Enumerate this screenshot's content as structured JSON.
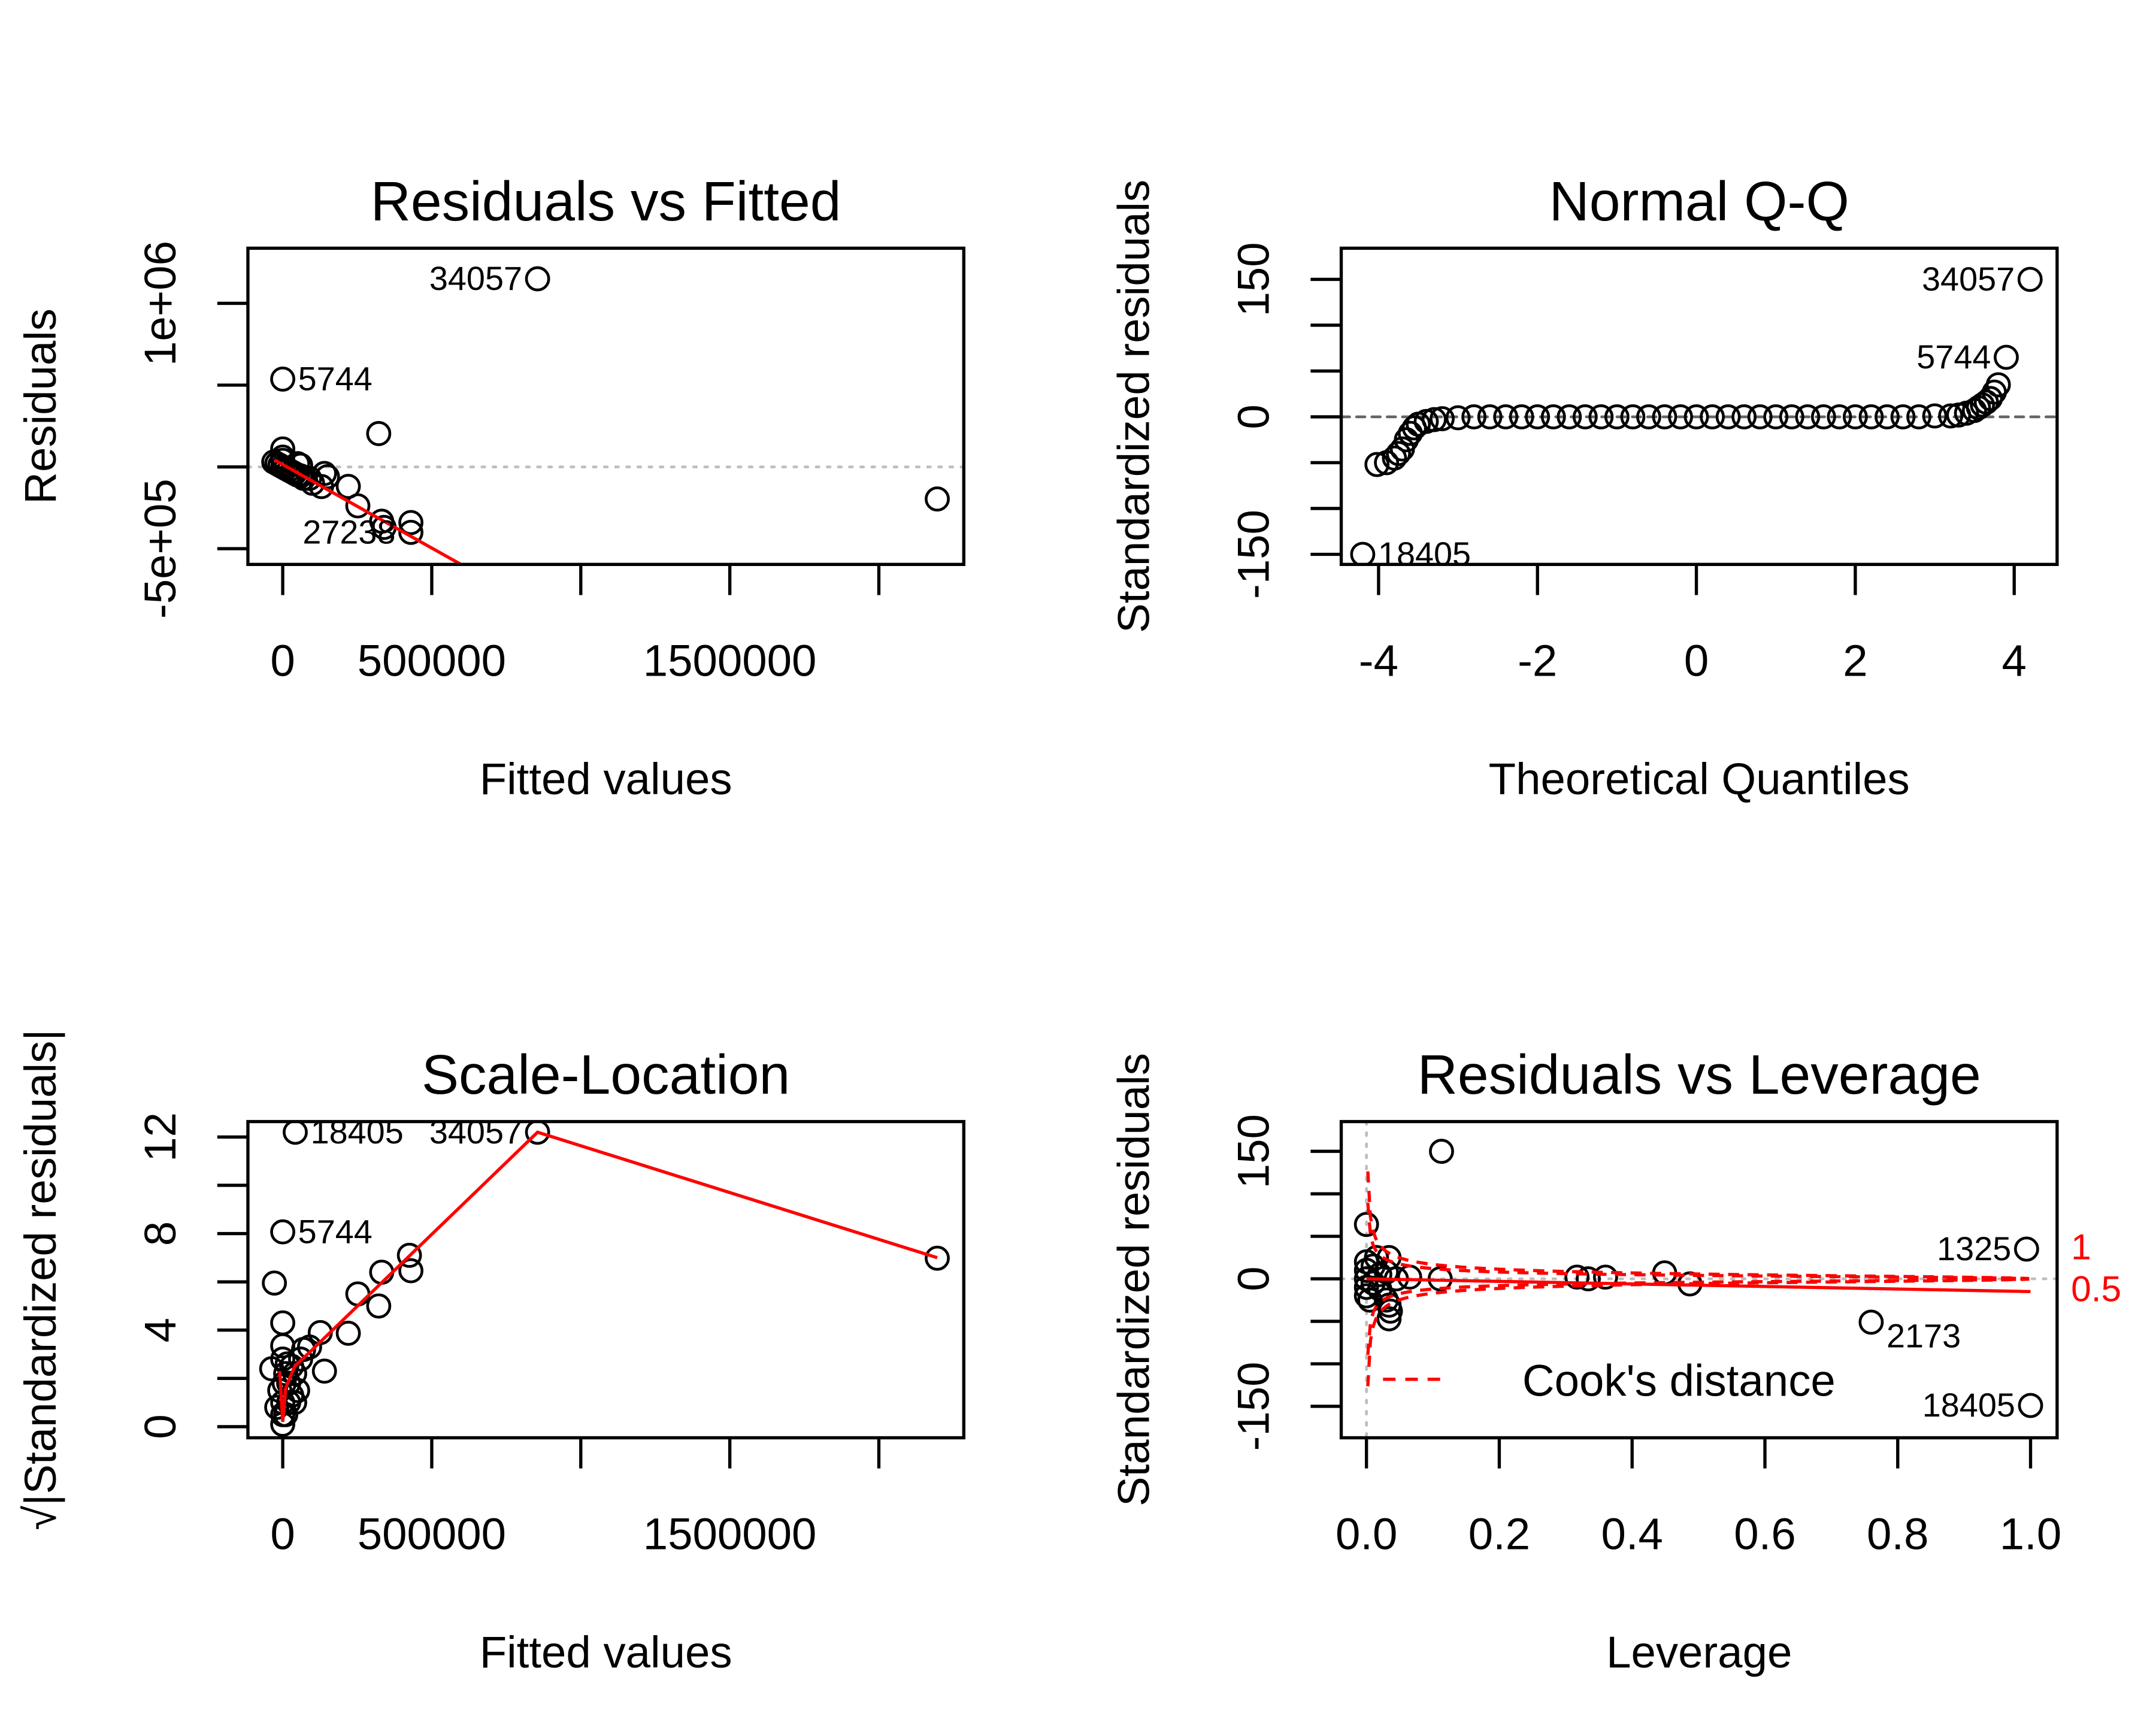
{
  "chart_data": [
    {
      "type": "scatter",
      "title": "Residuals vs Fitted",
      "xlabel": "Fitted values",
      "ylabel": "Residuals",
      "xlim": [
        -116800,
        2285000
      ],
      "ylim": [
        -596000,
        1337000
      ],
      "xticks": [
        0,
        500000,
        1000000,
        1500000,
        2000000
      ],
      "xtick_labels": [
        "0",
        "500000",
        "",
        "1500000",
        ""
      ],
      "yticks": [
        -500000,
        0,
        500000,
        1000000
      ],
      "ytick_labels": [
        "-5e+05",
        "",
        "",
        "1e+06"
      ],
      "points": [
        [
          -30000,
          30000
        ],
        [
          -20000,
          20000
        ],
        [
          -10000,
          10000
        ],
        [
          0,
          0
        ],
        [
          0,
          60000
        ],
        [
          0,
          110000
        ],
        [
          0,
          40000
        ],
        [
          10000,
          -10000
        ],
        [
          20000,
          -20000
        ],
        [
          30000,
          -30000
        ],
        [
          40000,
          -40000
        ],
        [
          50000,
          -50000
        ],
        [
          60000,
          -55000
        ],
        [
          70000,
          -70000
        ],
        [
          50000,
          20000
        ],
        [
          60000,
          10000
        ],
        [
          90000,
          -70000
        ],
        [
          100000,
          -100000
        ],
        [
          130000,
          -120000
        ],
        [
          140000,
          -40000
        ],
        [
          150000,
          -60000
        ],
        [
          220000,
          -119000
        ],
        [
          252000,
          -238000
        ],
        [
          322000,
          204000
        ],
        [
          332000,
          -332000
        ],
        [
          340000,
          -370000
        ],
        [
          430000,
          -340000
        ],
        [
          430000,
          -400000
        ],
        [
          2196000,
          -196000
        ],
        [
          855000,
          1150000
        ],
        [
          0,
          537000
        ]
      ],
      "labels": [
        {
          "text": "34057",
          "x": 855000,
          "y": 1150000
        },
        {
          "text": "5744",
          "x": 0,
          "y": 537000
        },
        {
          "text": "27238",
          "x": 430000,
          "y": -400000
        }
      ],
      "hlines": [
        {
          "y": 0,
          "style": "dotted",
          "color": "#bebebe"
        }
      ],
      "vlines": [],
      "lines": [
        {
          "style": "solid",
          "color": "#ff0000",
          "points": [
            [
              -28000,
              43000
            ],
            [
              700000,
              -700000
            ]
          ]
        }
      ]
    },
    {
      "type": "scatter",
      "title": "Normal Q-Q",
      "xlabel": "Theoretical Quantiles",
      "ylabel": "Standardized residuals",
      "xlim": [
        -4.47,
        4.54
      ],
      "ylim": [
        -161,
        184
      ],
      "xticks": [
        -4,
        -2,
        0,
        2,
        4
      ],
      "xtick_labels": [
        "-4",
        "-2",
        "0",
        "2",
        "4"
      ],
      "yticks": [
        -150,
        -100,
        -50,
        0,
        50,
        100,
        150
      ],
      "ytick_labels": [
        "-150",
        "",
        "",
        "0",
        "",
        "",
        "150"
      ],
      "points": [
        [
          -4.2,
          -150
        ],
        [
          -4.02,
          -52
        ],
        [
          -3.9,
          -50
        ],
        [
          -3.8,
          -45
        ],
        [
          -3.75,
          -40
        ],
        [
          -3.7,
          -35
        ],
        [
          -3.65,
          -25
        ],
        [
          -3.6,
          -18
        ],
        [
          -3.55,
          -12
        ],
        [
          -3.5,
          -8
        ],
        [
          -3.4,
          -5
        ],
        [
          -3.3,
          -3
        ],
        [
          -3.2,
          -2
        ],
        [
          -3.0,
          -1
        ],
        [
          -2.8,
          0
        ],
        [
          -2.6,
          0
        ],
        [
          -2.4,
          0
        ],
        [
          -2.2,
          0
        ],
        [
          -2.0,
          0
        ],
        [
          -1.8,
          0
        ],
        [
          -1.6,
          0
        ],
        [
          -1.4,
          0
        ],
        [
          -1.2,
          0
        ],
        [
          -1.0,
          0
        ],
        [
          -0.8,
          0
        ],
        [
          -0.6,
          0
        ],
        [
          -0.4,
          0
        ],
        [
          -0.2,
          0
        ],
        [
          0,
          0
        ],
        [
          0.2,
          0
        ],
        [
          0.4,
          0
        ],
        [
          0.6,
          0
        ],
        [
          0.8,
          0
        ],
        [
          1.0,
          0
        ],
        [
          1.2,
          0
        ],
        [
          1.4,
          0
        ],
        [
          1.6,
          0
        ],
        [
          1.8,
          0
        ],
        [
          2.0,
          0
        ],
        [
          2.2,
          0
        ],
        [
          2.4,
          0
        ],
        [
          2.6,
          0
        ],
        [
          2.8,
          0
        ],
        [
          3.0,
          1
        ],
        [
          3.2,
          1
        ],
        [
          3.3,
          2
        ],
        [
          3.4,
          4
        ],
        [
          3.5,
          7
        ],
        [
          3.55,
          10
        ],
        [
          3.6,
          13
        ],
        [
          3.65,
          16
        ],
        [
          3.7,
          20
        ],
        [
          3.75,
          27
        ],
        [
          3.8,
          35
        ],
        [
          3.9,
          65
        ],
        [
          4.2,
          150
        ]
      ],
      "labels": [
        {
          "text": "34057",
          "x": 4.2,
          "y": 150
        },
        {
          "text": "5744",
          "x": 3.9,
          "y": 65
        },
        {
          "text": "18405",
          "x": -4.2,
          "y": -150
        }
      ],
      "hlines": [
        {
          "y": 0,
          "style": "dashed",
          "color": "#666666"
        }
      ],
      "vlines": [],
      "lines": []
    },
    {
      "type": "scatter",
      "title": "Scale-Location",
      "xlabel": "Fitted values",
      "ylabel": "√|Standardized residuals|",
      "xlim": [
        -116800,
        2285000
      ],
      "ylim": [
        -0.46,
        12.64
      ],
      "xticks": [
        0,
        500000,
        1000000,
        1500000,
        2000000
      ],
      "xtick_labels": [
        "0",
        "500000",
        "",
        "1500000",
        ""
      ],
      "yticks": [
        0,
        2,
        4,
        6,
        8,
        10,
        12
      ],
      "ytick_labels": [
        "0",
        "",
        "4",
        "",
        "8",
        "",
        "12"
      ],
      "points": [
        [
          855000,
          12.2
        ],
        [
          42000,
          12.2
        ],
        [
          0,
          8.07
        ],
        [
          -28000,
          5.95
        ],
        [
          2196000,
          6.98
        ],
        [
          425000,
          7.1
        ],
        [
          430000,
          6.46
        ],
        [
          332000,
          6.4
        ],
        [
          322000,
          5.0
        ],
        [
          252000,
          5.5
        ],
        [
          220000,
          3.87
        ],
        [
          126000,
          3.9
        ],
        [
          140000,
          2.3
        ],
        [
          0,
          4.3
        ],
        [
          0,
          3.35
        ],
        [
          -37000,
          2.4
        ],
        [
          0,
          2.8
        ],
        [
          10000,
          2.2
        ],
        [
          20000,
          1.8
        ],
        [
          30000,
          2.5
        ],
        [
          40000,
          2.2
        ],
        [
          50000,
          1.5
        ],
        [
          60000,
          2.8
        ],
        [
          70000,
          3.2
        ],
        [
          90000,
          3.3
        ],
        [
          0,
          1.0
        ],
        [
          0,
          0.5
        ],
        [
          0,
          0.1
        ],
        [
          10000,
          0.5
        ],
        [
          20000,
          1.0
        ],
        [
          30000,
          1.3
        ],
        [
          40000,
          1.0
        ],
        [
          -10000,
          1.5
        ],
        [
          -20000,
          0.8
        ],
        [
          5000,
          1.8
        ],
        [
          15000,
          2.6
        ]
      ],
      "labels": [
        {
          "text": "34057",
          "x": 855000,
          "y": 12.2
        },
        {
          "text": "18405",
          "x": 42000,
          "y": 12.2
        },
        {
          "text": "5744",
          "x": 0,
          "y": 8.07
        }
      ],
      "hlines": [],
      "vlines": [],
      "lines": [
        {
          "style": "solid",
          "color": "#ff0000",
          "points": [
            [
              -10000,
              2.3
            ],
            [
              0,
              0.2
            ],
            [
              10000,
              1.6
            ],
            [
              40000,
              2.5
            ],
            [
              100000,
              3.2
            ],
            [
              855000,
              12.2
            ],
            [
              2196000,
              7.0
            ]
          ]
        }
      ]
    },
    {
      "type": "scatter",
      "title": "Residuals vs Leverage",
      "xlabel": "Leverage",
      "ylabel": "Standardized residuals",
      "xlim": [
        -0.038,
        1.04
      ],
      "ylim": [
        -187,
        185
      ],
      "xticks": [
        0,
        0.2,
        0.4,
        0.6,
        0.8,
        1.0
      ],
      "xtick_labels": [
        "0.0",
        "0.2",
        "0.4",
        "0.6",
        "0.8",
        "1.0"
      ],
      "yticks": [
        -150,
        -100,
        -50,
        0,
        50,
        100,
        150
      ],
      "ytick_labels": [
        "-150",
        "",
        "",
        "0",
        "",
        "",
        "150"
      ],
      "points": [
        [
          0.113,
          150
        ],
        [
          0,
          64
        ],
        [
          0.034,
          25
        ],
        [
          0.994,
          35
        ],
        [
          0.76,
          -51
        ],
        [
          1.0,
          -149
        ],
        [
          0.111,
          0
        ],
        [
          0.065,
          2
        ],
        [
          0.045,
          0
        ],
        [
          0.317,
          2
        ],
        [
          0.334,
          0
        ],
        [
          0.36,
          2
        ],
        [
          0.449,
          7
        ],
        [
          0.487,
          -6
        ],
        [
          0.034,
          -31
        ],
        [
          0.034,
          -47
        ],
        [
          0.036,
          -38
        ],
        [
          0.03,
          -25
        ],
        [
          0,
          20
        ],
        [
          0,
          10
        ],
        [
          0,
          0
        ],
        [
          0,
          -10
        ],
        [
          0,
          -20
        ],
        [
          0.01,
          15
        ],
        [
          0.01,
          -5
        ],
        [
          0.02,
          5
        ],
        [
          0.02,
          -12
        ],
        [
          0.005,
          -25
        ],
        [
          0.03,
          8
        ],
        [
          0.015,
          25
        ]
      ],
      "labels": [
        {
          "text": "1325",
          "x": 0.994,
          "y": 35
        },
        {
          "text": "2173",
          "x": 0.76,
          "y": -51
        },
        {
          "text": "18405",
          "x": 1.0,
          "y": -149
        }
      ],
      "hlines": [
        {
          "y": 0,
          "style": "dotted",
          "color": "#bebebe"
        }
      ],
      "vlines": [
        {
          "x": 0,
          "style": "dotted",
          "color": "#bebebe"
        }
      ],
      "lines": [
        {
          "style": "solid",
          "color": "#ff0000",
          "points": [
            [
              0,
              0
            ],
            [
              1,
              -15
            ]
          ]
        }
      ],
      "cooks_distance": {
        "levels": [
          0.5,
          1
        ],
        "level_labels": [
          "0.5",
          "1"
        ],
        "color": "#ff0000",
        "legend": "Cook's distance"
      }
    }
  ]
}
